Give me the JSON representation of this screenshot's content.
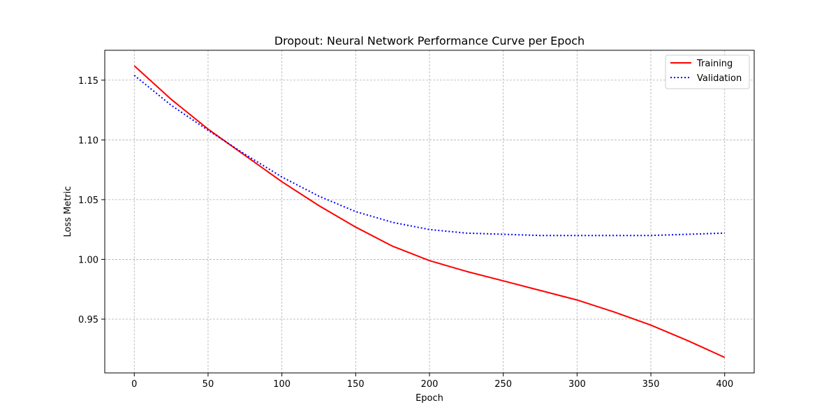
{
  "chart_data": {
    "type": "line",
    "title": "Dropout: Neural Network Performance Curve per Epoch",
    "xlabel": "Epoch",
    "ylabel": "Loss Metric",
    "xlim": [
      -20,
      420
    ],
    "ylim": [
      0.905,
      1.175
    ],
    "xticks": [
      0,
      50,
      100,
      150,
      200,
      250,
      300,
      350,
      400
    ],
    "xtick_labels": [
      "0",
      "50",
      "100",
      "150",
      "200",
      "250",
      "300",
      "350",
      "400"
    ],
    "yticks": [
      0.95,
      1.0,
      1.05,
      1.1,
      1.15
    ],
    "ytick_labels": [
      "0.95",
      "1.00",
      "1.05",
      "1.10",
      "1.15"
    ],
    "grid": true,
    "legend_position": "top-right",
    "series": [
      {
        "name": "Training",
        "color": "#ff0000",
        "style": "solid",
        "x": [
          0,
          25,
          50,
          75,
          100,
          125,
          150,
          175,
          200,
          225,
          250,
          275,
          300,
          325,
          350,
          375,
          400
        ],
        "y": [
          1.162,
          1.134,
          1.109,
          1.087,
          1.065,
          1.045,
          1.027,
          1.011,
          0.999,
          0.99,
          0.982,
          0.974,
          0.966,
          0.956,
          0.945,
          0.932,
          0.918
        ]
      },
      {
        "name": "Validation",
        "color": "#0000ff",
        "style": "dotted",
        "x": [
          0,
          25,
          50,
          75,
          100,
          125,
          150,
          175,
          200,
          225,
          250,
          275,
          300,
          325,
          350,
          375,
          400
        ],
        "y": [
          1.154,
          1.129,
          1.108,
          1.088,
          1.069,
          1.053,
          1.04,
          1.031,
          1.025,
          1.022,
          1.021,
          1.02,
          1.02,
          1.02,
          1.02,
          1.021,
          1.022
        ]
      }
    ]
  }
}
